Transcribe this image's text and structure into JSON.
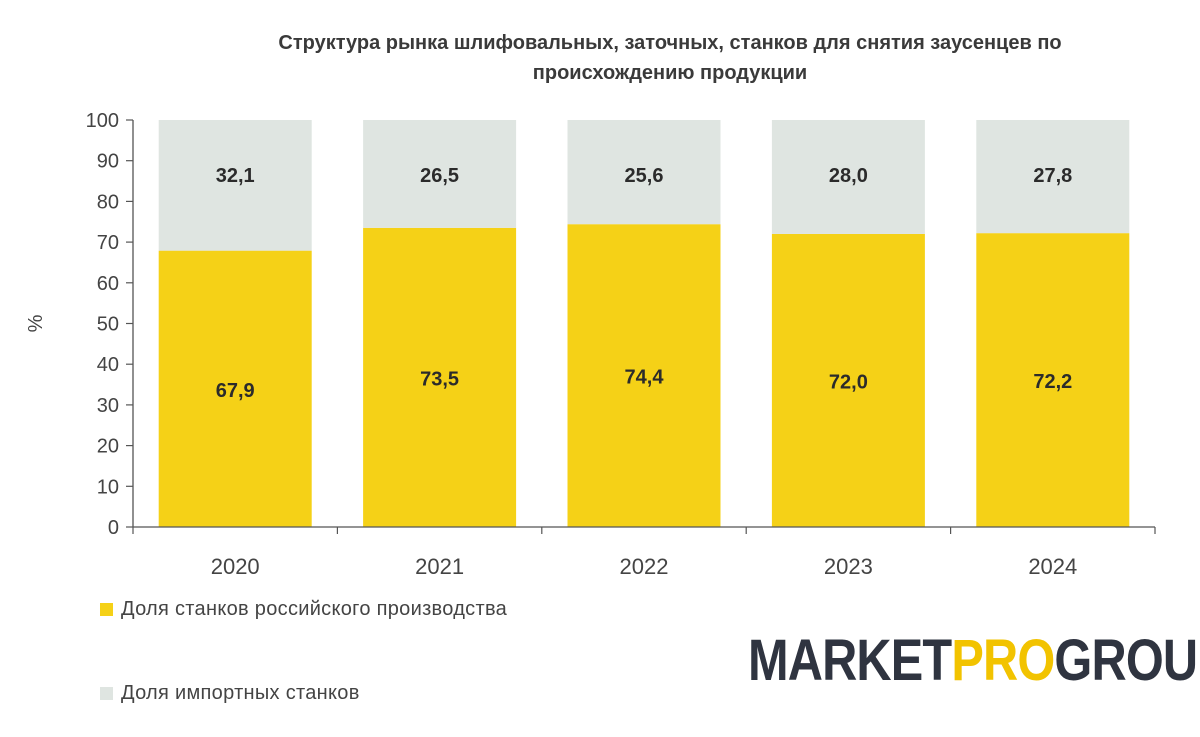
{
  "chart_data": {
    "type": "bar",
    "stacked": true,
    "title": "Структура рынка шлифовальных, заточных, станков для снятия заусенцев по происхождению продукции",
    "title_lines": [
      "Структура рынка шлифовальных, заточных, станков для снятия заусенцев по",
      "происхождению продукции"
    ],
    "ylabel": "%",
    "xlabel": "",
    "ylim": [
      0,
      100
    ],
    "yticks": [
      0,
      10,
      20,
      30,
      40,
      50,
      60,
      70,
      80,
      90,
      100
    ],
    "categories": [
      "2020",
      "2021",
      "2022",
      "2023",
      "2024"
    ],
    "series": [
      {
        "name": "Доля станков российского производства",
        "values": [
          67.9,
          73.5,
          74.4,
          72.0,
          72.2
        ],
        "labels": [
          "67,9",
          "73,5",
          "74,4",
          "72,0",
          "72,2"
        ],
        "color": "#f5d117"
      },
      {
        "name": "Доля импортных станков",
        "values": [
          32.1,
          26.5,
          25.6,
          28.0,
          27.8
        ],
        "labels": [
          "32,1",
          "26,5",
          "25,6",
          "28,0",
          "27,8"
        ],
        "color": "#dfe5e1"
      }
    ],
    "legend_position": "bottom-left"
  },
  "logo": {
    "part1": "MARKET",
    "part2": "PRO",
    "part3": "GROUP",
    "accent_color": "#f2c300",
    "text_color": "#2f3440"
  }
}
